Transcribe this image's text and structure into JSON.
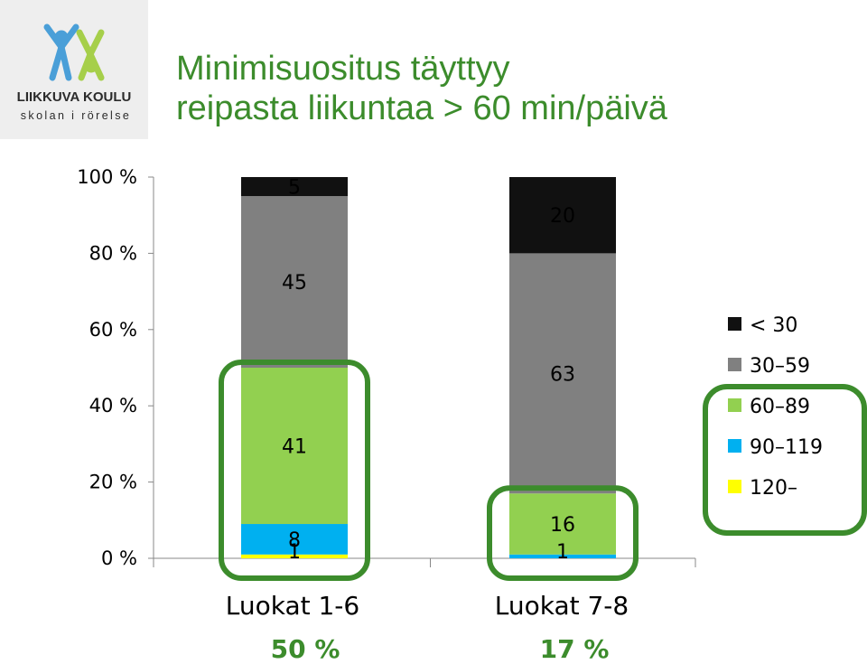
{
  "header": {
    "title_line1": "Minimisuositus täyttyy",
    "title_line2": "reipasta liikuntaa > 60 min/päivä"
  },
  "logo": {
    "name": "LIIKKUVA KOULU",
    "tagline": "skolan i rörelse",
    "colors": {
      "figure1": "#4a9fd8",
      "figure2": "#a6cf4a",
      "text": "#2b2b2b"
    }
  },
  "highlight_color": "#3c8c2c",
  "chart_data": {
    "type": "bar",
    "stacked": true,
    "percent_stacked": true,
    "categories": [
      "Luokat 1-6",
      "Luokat 7-8"
    ],
    "category_annotations": [
      "50 %",
      "17 %"
    ],
    "yticks": [
      "0 %",
      "20 %",
      "40 %",
      "60 %",
      "80 %",
      "100 %"
    ],
    "ylim": [
      0,
      100
    ],
    "series": [
      {
        "name": "120–",
        "color": "#ffff00",
        "values": [
          1,
          0
        ],
        "labels": [
          "1",
          ""
        ]
      },
      {
        "name": "90–119",
        "color": "#00b0f0",
        "values": [
          8,
          1
        ],
        "labels": [
          "8",
          "1"
        ]
      },
      {
        "name": "60–89",
        "color": "#92d050",
        "values": [
          41,
          16
        ],
        "labels": [
          "41",
          "16"
        ]
      },
      {
        "name": "30–59",
        "color": "#808080",
        "values": [
          45,
          63
        ],
        "labels": [
          "45",
          "63"
        ]
      },
      {
        "name": "< 30",
        "color": "#111111",
        "values": [
          5,
          20
        ],
        "labels": [
          "5",
          "20"
        ]
      }
    ],
    "legend_order": [
      "< 30",
      "30–59",
      "60–89",
      "90–119",
      "120–"
    ],
    "legend_position": "right",
    "highlighted_series": [
      "120–",
      "90–119",
      "60–89"
    ]
  }
}
